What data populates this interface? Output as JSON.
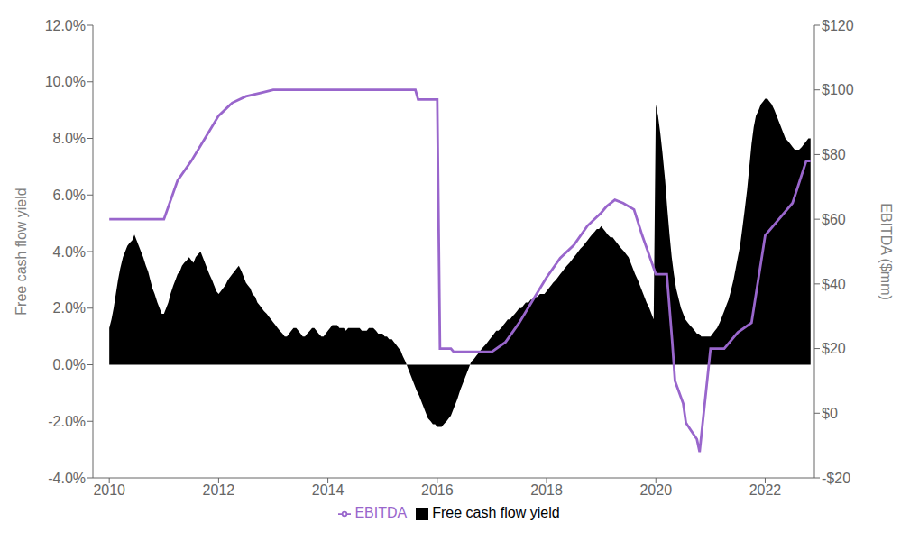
{
  "chart_data": {
    "type": "line",
    "xlim": [
      2009.7,
      2022.9
    ],
    "xticks": [
      2010,
      2012,
      2014,
      2016,
      2018,
      2020,
      2022
    ],
    "ylim": [
      -0.04,
      0.12
    ],
    "yticks": [
      {
        "value": -0.04,
        "label": "-4.0%"
      },
      {
        "value": -0.02,
        "label": "-2.0%"
      },
      {
        "value": 0.0,
        "label": "0.0%"
      },
      {
        "value": 0.02,
        "label": "2.0%"
      },
      {
        "value": 0.04,
        "label": "4.0%"
      },
      {
        "value": 0.06,
        "label": "6.0%"
      },
      {
        "value": 0.08,
        "label": "8.0%"
      },
      {
        "value": 0.1,
        "label": "10.0%"
      },
      {
        "value": 0.12,
        "label": "12.0%"
      }
    ],
    "y2lim": [
      -20,
      120
    ],
    "y2ticks": [
      {
        "value": -20,
        "label": "-$20"
      },
      {
        "value": 0,
        "label": "$0"
      },
      {
        "value": 20,
        "label": "$20"
      },
      {
        "value": 40,
        "label": "$40"
      },
      {
        "value": 60,
        "label": "$60"
      },
      {
        "value": 80,
        "label": "$80"
      },
      {
        "value": 100,
        "label": "$100"
      },
      {
        "value": 120,
        "label": "$120"
      }
    ],
    "ylabel": "Free cash flow yield",
    "y2label": "EBITDA ($mm)",
    "grid": false,
    "legend": "bottom",
    "series": [
      {
        "name": "Free cash flow yield",
        "type": "area",
        "color": "#000000",
        "x": [
          2010.0,
          2010.04,
          2010.08,
          2010.12,
          2010.16,
          2010.2,
          2010.25,
          2010.29,
          2010.33,
          2010.37,
          2010.42,
          2010.46,
          2010.5,
          2010.54,
          2010.58,
          2010.62,
          2010.67,
          2010.71,
          2010.75,
          2010.79,
          2010.83,
          2010.88,
          2010.92,
          2010.96,
          2011.0,
          2011.04,
          2011.08,
          2011.12,
          2011.17,
          2011.21,
          2011.25,
          2011.29,
          2011.33,
          2011.37,
          2011.42,
          2011.46,
          2011.5,
          2011.54,
          2011.58,
          2011.62,
          2011.67,
          2011.71,
          2011.75,
          2011.79,
          2011.83,
          2011.88,
          2011.92,
          2011.96,
          2012.0,
          2012.04,
          2012.08,
          2012.12,
          2012.17,
          2012.21,
          2012.25,
          2012.29,
          2012.33,
          2012.37,
          2012.42,
          2012.46,
          2012.5,
          2012.54,
          2012.58,
          2012.62,
          2012.67,
          2012.71,
          2012.75,
          2012.79,
          2012.83,
          2012.88,
          2012.92,
          2012.96,
          2013.0,
          2013.04,
          2013.08,
          2013.12,
          2013.17,
          2013.21,
          2013.25,
          2013.29,
          2013.33,
          2013.37,
          2013.42,
          2013.46,
          2013.5,
          2013.54,
          2013.58,
          2013.62,
          2013.67,
          2013.71,
          2013.75,
          2013.79,
          2013.83,
          2013.88,
          2013.92,
          2013.96,
          2014.0,
          2014.04,
          2014.08,
          2014.12,
          2014.17,
          2014.21,
          2014.25,
          2014.29,
          2014.33,
          2014.37,
          2014.42,
          2014.46,
          2014.5,
          2014.54,
          2014.58,
          2014.62,
          2014.67,
          2014.71,
          2014.75,
          2014.79,
          2014.83,
          2014.88,
          2014.92,
          2014.96,
          2015.0,
          2015.04,
          2015.08,
          2015.12,
          2015.17,
          2015.21,
          2015.25,
          2015.29,
          2015.33,
          2015.37,
          2015.42,
          2015.46,
          2015.5,
          2015.54,
          2015.58,
          2015.62,
          2015.67,
          2015.71,
          2015.75,
          2015.79,
          2015.83,
          2015.88,
          2015.92,
          2015.96,
          2016.0,
          2016.04,
          2016.08,
          2016.12,
          2016.17,
          2016.21,
          2016.25,
          2016.29,
          2016.33,
          2016.37,
          2016.42,
          2016.46,
          2016.5,
          2016.54,
          2016.58,
          2016.62,
          2016.67,
          2016.71,
          2016.75,
          2016.79,
          2016.83,
          2016.88,
          2016.92,
          2016.96,
          2017.0,
          2017.04,
          2017.08,
          2017.12,
          2017.17,
          2017.21,
          2017.25,
          2017.29,
          2017.33,
          2017.37,
          2017.42,
          2017.46,
          2017.5,
          2017.54,
          2017.58,
          2017.62,
          2017.67,
          2017.71,
          2017.75,
          2017.79,
          2017.83,
          2017.88,
          2017.92,
          2017.96,
          2018.0,
          2018.04,
          2018.08,
          2018.12,
          2018.17,
          2018.21,
          2018.25,
          2018.29,
          2018.33,
          2018.37,
          2018.42,
          2018.46,
          2018.5,
          2018.54,
          2018.58,
          2018.62,
          2018.67,
          2018.71,
          2018.75,
          2018.79,
          2018.83,
          2018.88,
          2018.92,
          2018.96,
          2019.0,
          2019.04,
          2019.08,
          2019.12,
          2019.17,
          2019.21,
          2019.25,
          2019.29,
          2019.33,
          2019.37,
          2019.42,
          2019.46,
          2019.5,
          2019.54,
          2019.58,
          2019.62,
          2019.67,
          2019.71,
          2019.75,
          2019.79,
          2019.83,
          2019.88,
          2019.92,
          2019.96,
          2020.0,
          2020.04,
          2020.08,
          2020.12,
          2020.17,
          2020.21,
          2020.25,
          2020.29,
          2020.33,
          2020.37,
          2020.42,
          2020.46,
          2020.5,
          2020.54,
          2020.58,
          2020.62,
          2020.67,
          2020.71,
          2020.75,
          2020.79,
          2020.83,
          2020.88,
          2020.92,
          2020.96,
          2021.0,
          2021.04,
          2021.08,
          2021.12,
          2021.17,
          2021.21,
          2021.25,
          2021.29,
          2021.33,
          2021.37,
          2021.42,
          2021.46,
          2021.5,
          2021.54,
          2021.58,
          2021.62,
          2021.67,
          2021.71,
          2021.75,
          2021.79,
          2021.83,
          2021.88,
          2021.92,
          2021.96,
          2022.0,
          2022.04,
          2022.08,
          2022.12,
          2022.17,
          2022.21,
          2022.25,
          2022.29,
          2022.33,
          2022.37,
          2022.42,
          2022.46,
          2022.5,
          2022.54,
          2022.58,
          2022.62,
          2022.67,
          2022.71,
          2022.75,
          2022.79,
          2022.83
        ],
        "values": [
          0.013,
          0.016,
          0.02,
          0.025,
          0.03,
          0.034,
          0.038,
          0.04,
          0.042,
          0.043,
          0.044,
          0.046,
          0.044,
          0.042,
          0.04,
          0.038,
          0.035,
          0.033,
          0.03,
          0.027,
          0.025,
          0.022,
          0.02,
          0.018,
          0.018,
          0.02,
          0.022,
          0.025,
          0.028,
          0.03,
          0.032,
          0.033,
          0.035,
          0.036,
          0.037,
          0.038,
          0.037,
          0.036,
          0.038,
          0.039,
          0.04,
          0.038,
          0.036,
          0.034,
          0.032,
          0.03,
          0.028,
          0.026,
          0.025,
          0.026,
          0.027,
          0.028,
          0.03,
          0.031,
          0.032,
          0.033,
          0.034,
          0.035,
          0.033,
          0.031,
          0.029,
          0.028,
          0.027,
          0.025,
          0.024,
          0.022,
          0.021,
          0.02,
          0.019,
          0.018,
          0.017,
          0.016,
          0.015,
          0.014,
          0.013,
          0.012,
          0.011,
          0.01,
          0.01,
          0.011,
          0.012,
          0.013,
          0.013,
          0.012,
          0.011,
          0.01,
          0.01,
          0.011,
          0.012,
          0.013,
          0.013,
          0.012,
          0.011,
          0.01,
          0.01,
          0.011,
          0.012,
          0.013,
          0.014,
          0.014,
          0.014,
          0.013,
          0.013,
          0.013,
          0.012,
          0.013,
          0.013,
          0.013,
          0.013,
          0.013,
          0.013,
          0.012,
          0.012,
          0.012,
          0.013,
          0.013,
          0.013,
          0.012,
          0.011,
          0.011,
          0.011,
          0.01,
          0.01,
          0.009,
          0.009,
          0.008,
          0.007,
          0.006,
          0.005,
          0.003,
          0.001,
          -0.001,
          -0.003,
          -0.005,
          -0.007,
          -0.009,
          -0.011,
          -0.013,
          -0.015,
          -0.017,
          -0.019,
          -0.02,
          -0.021,
          -0.021,
          -0.022,
          -0.022,
          -0.022,
          -0.021,
          -0.02,
          -0.019,
          -0.018,
          -0.016,
          -0.014,
          -0.012,
          -0.009,
          -0.007,
          -0.005,
          -0.003,
          -0.001,
          0.001,
          0.002,
          0.003,
          0.004,
          0.005,
          0.006,
          0.007,
          0.008,
          0.009,
          0.01,
          0.011,
          0.012,
          0.012,
          0.013,
          0.014,
          0.015,
          0.016,
          0.016,
          0.017,
          0.018,
          0.019,
          0.02,
          0.02,
          0.021,
          0.022,
          0.022,
          0.023,
          0.023,
          0.024,
          0.024,
          0.025,
          0.025,
          0.025,
          0.026,
          0.027,
          0.028,
          0.029,
          0.03,
          0.031,
          0.032,
          0.033,
          0.034,
          0.035,
          0.036,
          0.037,
          0.038,
          0.039,
          0.04,
          0.041,
          0.042,
          0.043,
          0.044,
          0.045,
          0.046,
          0.047,
          0.048,
          0.048,
          0.049,
          0.048,
          0.047,
          0.046,
          0.045,
          0.045,
          0.044,
          0.043,
          0.042,
          0.041,
          0.04,
          0.039,
          0.038,
          0.036,
          0.034,
          0.032,
          0.03,
          0.028,
          0.026,
          0.024,
          0.022,
          0.02,
          0.018,
          0.016,
          0.092,
          0.088,
          0.082,
          0.075,
          0.065,
          0.055,
          0.046,
          0.038,
          0.032,
          0.027,
          0.023,
          0.02,
          0.018,
          0.016,
          0.015,
          0.014,
          0.013,
          0.012,
          0.011,
          0.011,
          0.01,
          0.01,
          0.01,
          0.01,
          0.01,
          0.011,
          0.012,
          0.013,
          0.015,
          0.017,
          0.019,
          0.021,
          0.023,
          0.026,
          0.03,
          0.034,
          0.038,
          0.042,
          0.048,
          0.054,
          0.062,
          0.07,
          0.078,
          0.084,
          0.088,
          0.09,
          0.092,
          0.093,
          0.094,
          0.094,
          0.093,
          0.092,
          0.09,
          0.088,
          0.086,
          0.084,
          0.082,
          0.08,
          0.079,
          0.078,
          0.077,
          0.076,
          0.076,
          0.076,
          0.077,
          0.078,
          0.079,
          0.08,
          0.08
        ]
      },
      {
        "name": "EBITDA",
        "type": "line",
        "color": "#9966CC",
        "axis": "y2",
        "x": [
          2010.0,
          2010.5,
          2011.0,
          2011.25,
          2011.5,
          2011.75,
          2012.0,
          2012.25,
          2012.5,
          2012.75,
          2013.0,
          2014.75,
          2015.0,
          2015.6,
          2015.65,
          2016.0,
          2016.05,
          2016.25,
          2016.3,
          2017.0,
          2017.25,
          2017.5,
          2017.75,
          2018.0,
          2018.25,
          2018.5,
          2018.75,
          2019.0,
          2019.1,
          2019.25,
          2019.4,
          2019.6,
          2019.75,
          2020.0,
          2020.05,
          2020.15,
          2020.2,
          2020.3,
          2020.35,
          2020.5,
          2020.55,
          2020.75,
          2020.8,
          2021.0,
          2021.25,
          2021.5,
          2021.75,
          2022.0,
          2022.25,
          2022.5,
          2022.75,
          2022.83
        ],
        "values": [
          60,
          60,
          60,
          72,
          78,
          85,
          92,
          96,
          98,
          99,
          100,
          100,
          100,
          100,
          97,
          97,
          20,
          20,
          19,
          19,
          22,
          28,
          35,
          42,
          48,
          52,
          58,
          62,
          64,
          66,
          65,
          63,
          55,
          43,
          43,
          43,
          43,
          22,
          10,
          3,
          -3,
          -8,
          -12,
          20,
          20,
          25,
          28,
          55,
          60,
          65,
          78,
          78
        ]
      }
    ]
  }
}
